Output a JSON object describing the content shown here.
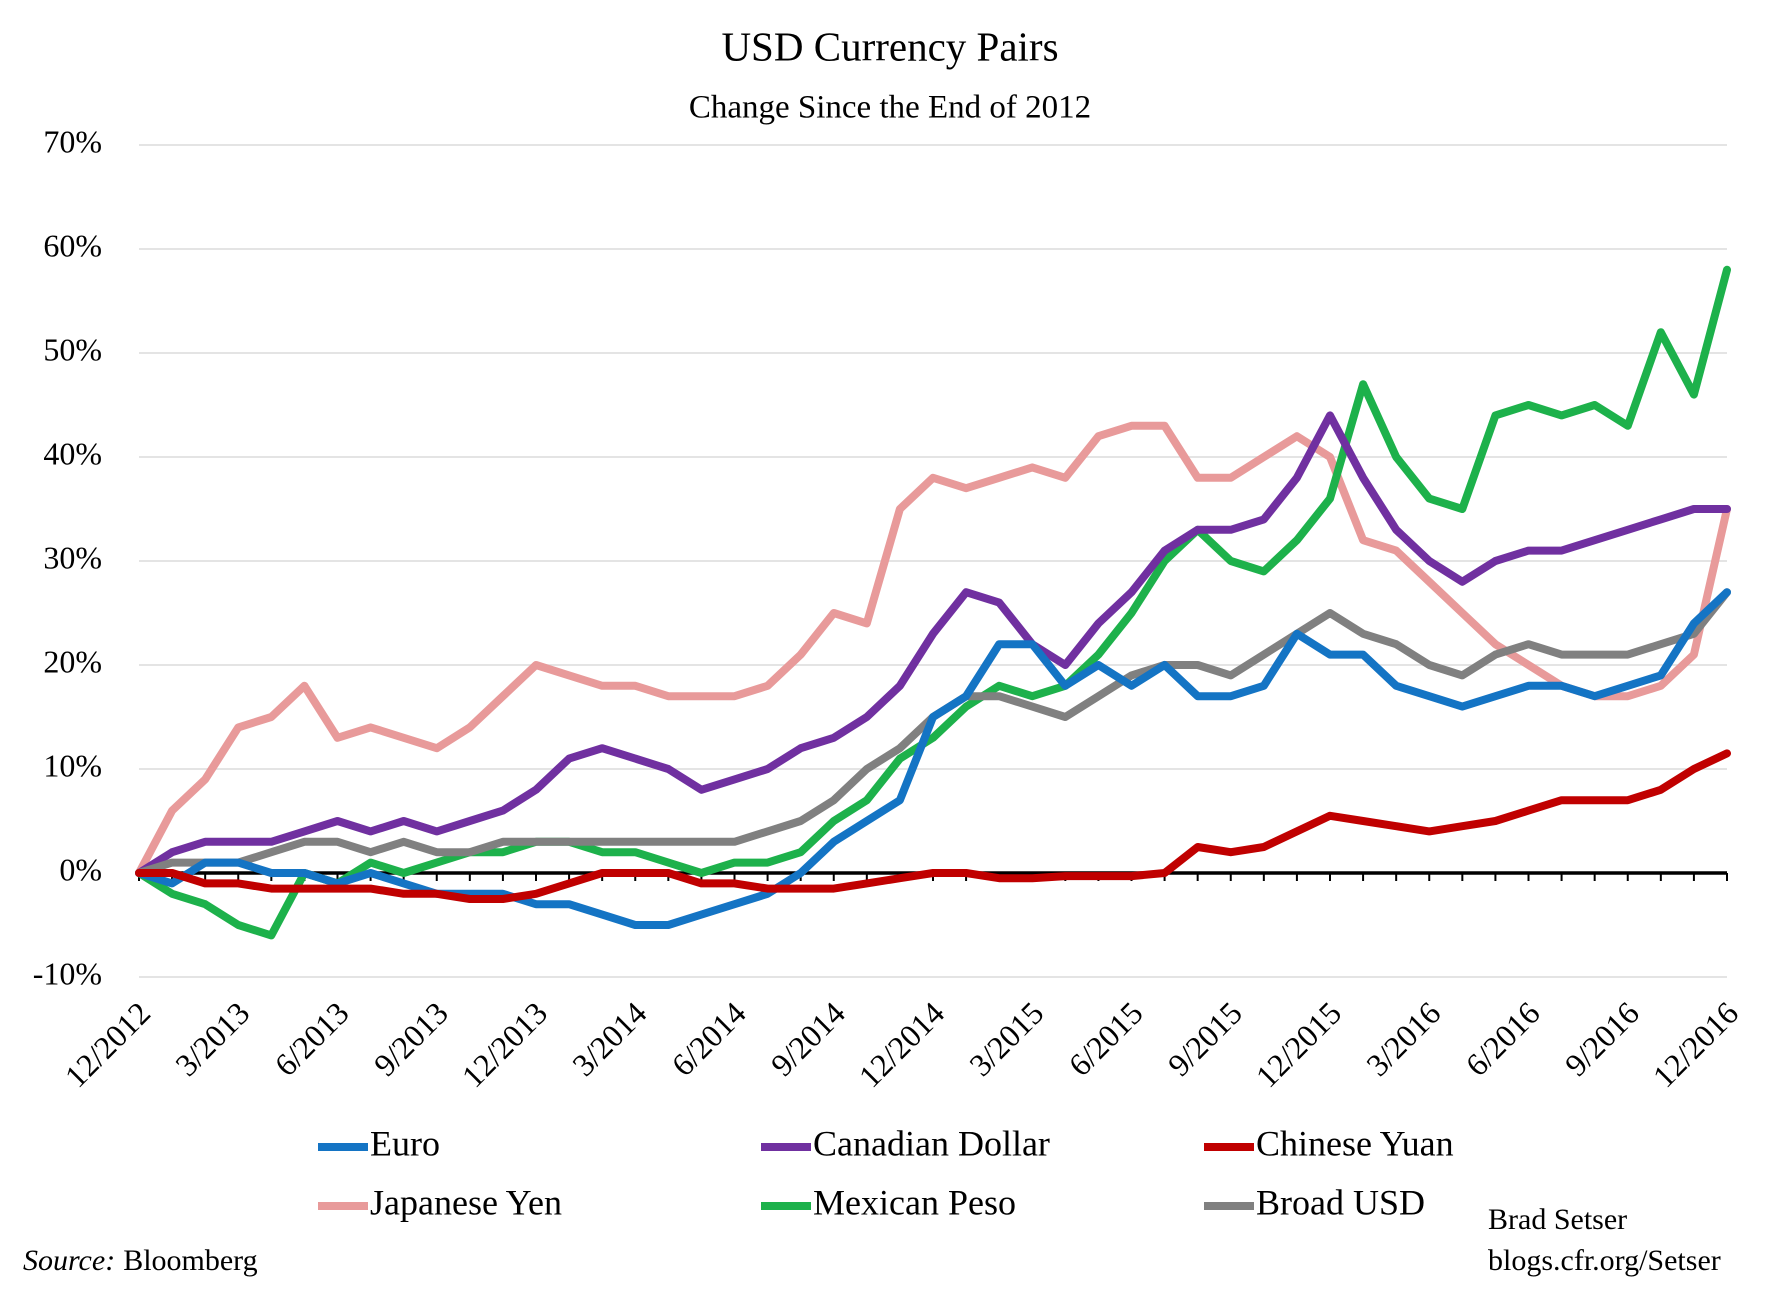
{
  "chart_data": {
    "type": "line",
    "title": "USD Currency Pairs",
    "subtitle": "Change Since the End of 2012",
    "categories": [
      "12/2012",
      null,
      null,
      "3/2013",
      null,
      null,
      "6/2013",
      null,
      null,
      "9/2013",
      null,
      null,
      "12/2013",
      null,
      null,
      "3/2014",
      null,
      null,
      "6/2014",
      null,
      null,
      "9/2014",
      null,
      null,
      "12/2014",
      null,
      null,
      "3/2015",
      null,
      null,
      "6/2015",
      null,
      null,
      "9/2015",
      null,
      null,
      "12/2015",
      null,
      null,
      "3/2016",
      null,
      null,
      "6/2016",
      null,
      null,
      "9/2016",
      null,
      null,
      "12/2016"
    ],
    "ylim": [
      -10,
      70
    ],
    "yticks": [
      {
        "value": -10,
        "label": "-10%"
      },
      {
        "value": 0,
        "label": "0%"
      },
      {
        "value": 10,
        "label": "10%"
      },
      {
        "value": 20,
        "label": "20%"
      },
      {
        "value": 30,
        "label": "30%"
      },
      {
        "value": 40,
        "label": "40%"
      },
      {
        "value": 50,
        "label": "50%"
      },
      {
        "value": 60,
        "label": "60%"
      },
      {
        "value": 70,
        "label": "70%"
      }
    ],
    "grid": true,
    "legend": "bottom",
    "series": [
      {
        "name": "Euro",
        "color": "#1474c4",
        "values": [
          0,
          -1,
          1,
          1,
          0,
          0,
          -1,
          0,
          -1,
          -2,
          -2,
          -2,
          -3,
          -3,
          -4,
          -5,
          -5,
          -4,
          -3,
          -2,
          0,
          3,
          5,
          7,
          15,
          17,
          22,
          22,
          18,
          20,
          18,
          20,
          17,
          17,
          18,
          23,
          21,
          21,
          18,
          17,
          16,
          17,
          18,
          18,
          17,
          18,
          19,
          24,
          27
        ]
      },
      {
        "name": "Canadian Dollar",
        "color": "#7030a0",
        "values": [
          0,
          2,
          3,
          3,
          3,
          4,
          5,
          4,
          5,
          4,
          5,
          6,
          8,
          11,
          12,
          11,
          10,
          8,
          9,
          10,
          12,
          13,
          15,
          18,
          23,
          27,
          26,
          22,
          20,
          24,
          27,
          31,
          33,
          33,
          34,
          38,
          44,
          38,
          33,
          30,
          28,
          30,
          31,
          31,
          32,
          33,
          34,
          35,
          35
        ]
      },
      {
        "name": "Chinese Yuan",
        "color": "#c00000",
        "values": [
          0,
          0,
          -1,
          -1,
          -1.5,
          -1.5,
          -1.5,
          -1.5,
          -2,
          -2,
          -2.5,
          -2.5,
          -2,
          -1,
          0,
          0,
          0,
          -1,
          -1,
          -1.5,
          -1.5,
          -1.5,
          -1,
          -0.5,
          0,
          0,
          -0.5,
          -0.5,
          -0.3,
          -0.3,
          -0.3,
          0,
          2.5,
          2,
          2.5,
          4,
          5.5,
          5,
          4.5,
          4,
          4.5,
          5,
          6,
          7,
          7,
          7,
          8,
          10,
          11.5
        ]
      },
      {
        "name": "Japanese Yen",
        "color": "#e89a9a",
        "values": [
          0,
          6,
          9,
          14,
          15,
          18,
          13,
          14,
          13,
          12,
          14,
          17,
          20,
          19,
          18,
          18,
          17,
          17,
          17,
          18,
          21,
          25,
          24,
          35,
          38,
          37,
          38,
          39,
          38,
          42,
          43,
          43,
          38,
          38,
          40,
          42,
          40,
          32,
          31,
          28,
          25,
          22,
          20,
          18,
          17,
          17,
          18,
          21,
          35
        ]
      },
      {
        "name": "Mexican Peso",
        "color": "#1db14b",
        "values": [
          0,
          -2,
          -3,
          -5,
          -6,
          0,
          -1,
          1,
          0,
          1,
          2,
          2,
          3,
          3,
          2,
          2,
          1,
          0,
          1,
          1,
          2,
          5,
          7,
          11,
          13,
          16,
          18,
          17,
          18,
          21,
          25,
          30,
          33,
          30,
          29,
          32,
          36,
          47,
          40,
          36,
          35,
          44,
          45,
          44,
          45,
          43,
          52,
          46,
          58
        ]
      },
      {
        "name": "Broad USD",
        "color": "#808080",
        "values": [
          0,
          1,
          1,
          1,
          2,
          3,
          3,
          2,
          3,
          2,
          2,
          3,
          3,
          3,
          3,
          3,
          3,
          3,
          3,
          4,
          5,
          7,
          10,
          12,
          15,
          17,
          17,
          16,
          15,
          17,
          19,
          20,
          20,
          19,
          21,
          23,
          25,
          23,
          22,
          20,
          19,
          21,
          22,
          21,
          21,
          21,
          22,
          23,
          27
        ]
      }
    ],
    "source_label": "Source:",
    "source": "Bloomberg",
    "annotations": [
      "Brad Setser",
      "blogs.cfr.org/Setser"
    ]
  }
}
